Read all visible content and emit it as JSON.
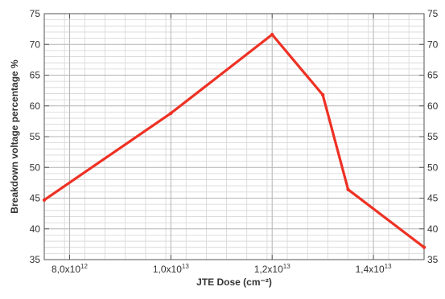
{
  "chart_data": {
    "type": "line",
    "xlabel": "JTE Dose (cm⁻²)",
    "ylabel": "Breakdown voltage percentage %",
    "xlim": [
      7500000000000.0,
      15000000000000.0
    ],
    "ylim": [
      35,
      75
    ],
    "x_ticks": [
      {
        "value": 8000000000000.0,
        "mantissa": "8,0x10",
        "exp": "12"
      },
      {
        "value": 10000000000000.0,
        "mantissa": "1,0x10",
        "exp": "13"
      },
      {
        "value": 12000000000000.0,
        "mantissa": "1,2x10",
        "exp": "13"
      },
      {
        "value": 14000000000000.0,
        "mantissa": "1,4x10",
        "exp": "13"
      }
    ],
    "y_ticks": [
      "35",
      "40",
      "45",
      "50",
      "55",
      "60",
      "65",
      "70",
      "75"
    ],
    "grid": true,
    "right_axis_mirror": true,
    "series": [
      {
        "color": "#ee3124",
        "x": [
          7500000000000.0,
          10000000000000.0,
          12000000000000.0,
          13000000000000.0,
          13500000000000.0,
          15000000000000.0
        ],
        "y": [
          44.7,
          58.8,
          71.6,
          61.8,
          46.4,
          37.0
        ]
      }
    ]
  }
}
